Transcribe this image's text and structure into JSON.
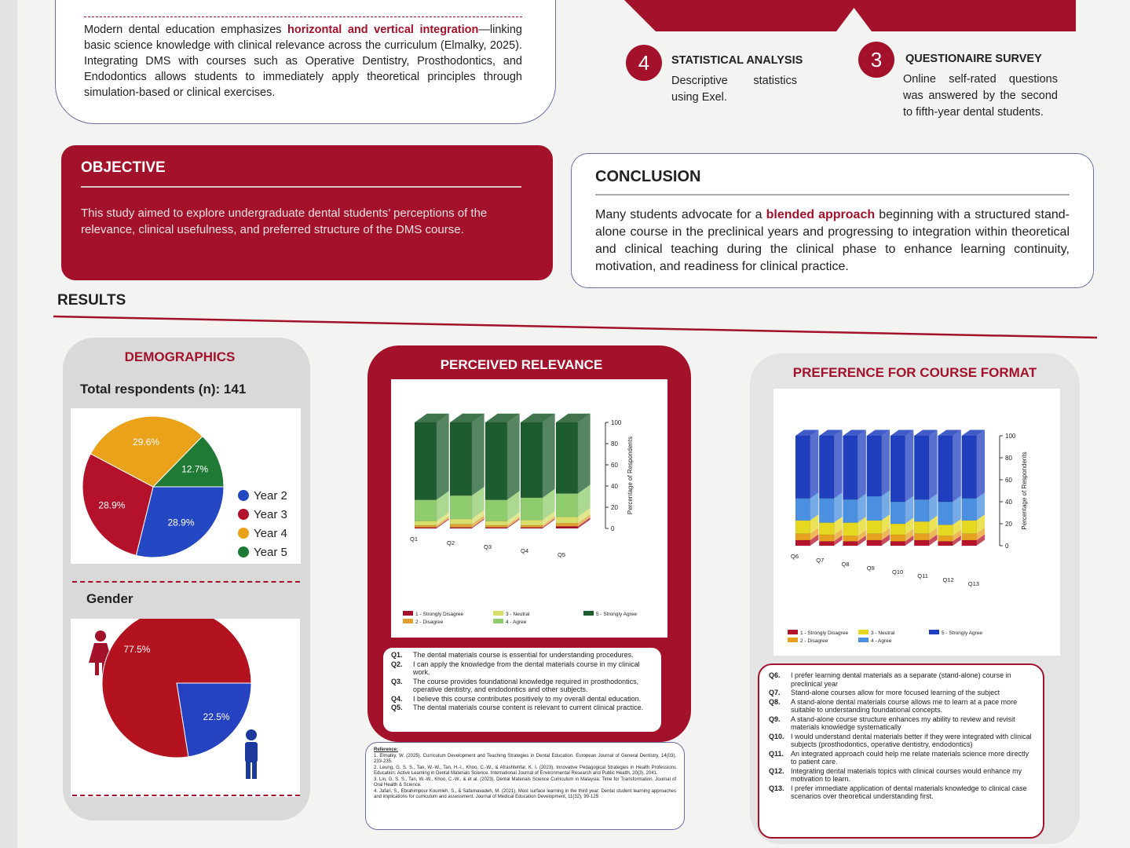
{
  "intro": {
    "before": "Modern dental education emphasizes ",
    "highlight": "horizontal and vertical integration",
    "after": "—linking basic science knowledge with clinical relevance across the curriculum (Elmalky, 2025). Integrating DMS with courses such as Operative Dentistry, Prosthodontics, and Endodontics allows students to immediately apply theoretical principles through simulation-based or clinical exercises."
  },
  "methods": [
    {
      "number": 4,
      "title": "STATISTICAL ANALYSIS",
      "text": "Descriptive statistics using Exel."
    },
    {
      "number": 3,
      "title": "QUESTIONAIRE SURVEY",
      "text": "Online self-rated questions was answered by the second to fifth-year dental students."
    }
  ],
  "objective": {
    "title": "OBJECTIVE",
    "text": "This study aimed to explore undergraduate dental students’ perceptions of the relevance, clinical usefulness, and preferred structure of the DMS course."
  },
  "conclusion": {
    "title": "CONCLUSION",
    "before": "Many students advocate for a ",
    "highlight": "blended approach",
    "after": " beginning with a structured stand-alone course in the preclinical years and progressing to integration within theoretical and clinical teaching during the clinical phase to enhance learning continuity, motivation, and readiness for clinical practice."
  },
  "results": {
    "title": "RESULTS",
    "demographics": {
      "title": "DEMOGRAPHICS",
      "total_label": "Total respondents (n):",
      "total": 141,
      "pie": {
        "type": "pie",
        "categories": [
          "Year 2",
          "Year 3",
          "Year 4",
          "Year 5"
        ],
        "values": [
          28.9,
          28.9,
          29.6,
          12.7
        ],
        "value_labels": [
          "28.9%",
          "28.9%",
          "29.6%",
          "12.7%"
        ],
        "colors": [
          "#2447c4",
          "#b3122a",
          "#e9a21a",
          "#1e7a34"
        ]
      },
      "gender_title": "Gender",
      "gender_pie": {
        "type": "pie",
        "values": [
          22.5,
          77.5
        ],
        "value_labels": [
          "22.5%",
          "77.5%"
        ],
        "colors": [
          "#2542c0",
          "#b3121f"
        ]
      }
    },
    "relevance": {
      "title": "PERCEIVED RELEVANCE",
      "chart": {
        "type": "bar",
        "stacked": true,
        "categories": [
          "Q1",
          "Q2",
          "Q3",
          "Q4",
          "Q5"
        ],
        "ylabel": "Percentage of Respondents",
        "ylim": [
          0,
          100
        ],
        "yticks": [
          0,
          20,
          40,
          60,
          80,
          100
        ],
        "series": [
          {
            "name": "1 - Strongly Disagree",
            "color": "#a3122a",
            "values": [
              1,
              1,
              1,
              1,
              2
            ]
          },
          {
            "name": "2 - Disagree",
            "color": "#e0a030",
            "values": [
              2,
              3,
              2,
              2,
              3
            ]
          },
          {
            "name": "3 - Neutral",
            "color": "#d6df6a",
            "values": [
              4,
              5,
              4,
              5,
              6
            ]
          },
          {
            "name": "4 - Agree",
            "color": "#8fcc6e",
            "values": [
              20,
              22,
              20,
              21,
              22
            ]
          },
          {
            "name": "5 - Strongly Agree",
            "color": "#1d5c2e",
            "values": [
              73,
              69,
              73,
              71,
              67
            ]
          }
        ]
      },
      "questions": [
        {
          "label": "Q1.",
          "text": "The dental materials course is essential for understanding procedures."
        },
        {
          "label": "Q2.",
          "text": "I can apply the knowledge from the dental materials course in my clinical work."
        },
        {
          "label": "Q3.",
          "text": "The course provides foundational knowledge required in prosthodontics, operative dentistry, and endodontics and other subjects."
        },
        {
          "label": "Q4.",
          "text": "I believe this course contributes positively to my overall dental education."
        },
        {
          "label": "Q5.",
          "text": "The dental materials course content is relevant to current clinical practice."
        }
      ]
    },
    "preference": {
      "title": "PREFERENCE FOR COURSE FORMAT",
      "chart": {
        "type": "bar",
        "stacked": true,
        "categories": [
          "Q6",
          "Q7",
          "Q8",
          "Q9",
          "Q10",
          "Q11",
          "Q12",
          "Q13"
        ],
        "ylabel": "Percentage of Respondents",
        "ylim": [
          0,
          100
        ],
        "yticks": [
          0,
          20,
          40,
          60,
          80,
          100
        ],
        "series": [
          {
            "name": "1 - Strongly Disagree",
            "color": "#b5122b",
            "values": [
              5,
              4,
              4,
              5,
              4,
              5,
              4,
              5
            ]
          },
          {
            "name": "2 - Disagree",
            "color": "#e8a020",
            "values": [
              6,
              6,
              5,
              6,
              6,
              6,
              5,
              6
            ]
          },
          {
            "name": "3 - Neutral",
            "color": "#e6d820",
            "values": [
              12,
              11,
              12,
              12,
              10,
              11,
              10,
              12
            ]
          },
          {
            "name": "4 - Agree",
            "color": "#4a8fe0",
            "values": [
              20,
              22,
              21,
              22,
              20,
              20,
              21,
              20
            ]
          },
          {
            "name": "5 - Strongly Agree",
            "color": "#1f3fbf",
            "values": [
              57,
              57,
              58,
              55,
              60,
              58,
              60,
              57
            ]
          }
        ]
      },
      "questions": [
        {
          "label": "Q6.",
          "text": "I prefer learning dental materials as a separate (stand-alone) course in preclinical year"
        },
        {
          "label": "Q7.",
          "text": "Stand-alone courses allow for more focused learning of the subject"
        },
        {
          "label": "Q8.",
          "text": "A stand-alone dental materials course allows me to learn at a pace more suitable to understanding foundational concepts."
        },
        {
          "label": "Q9.",
          "text": "A stand-alone course structure enhances my ability to review and revisit materials knowledge systematically"
        },
        {
          "label": "Q10.",
          "text": "I would understand dental materials better if they were integrated with clinical subjects (prosthodontics, operative dentistry, endodontics)"
        },
        {
          "label": "Q11.",
          "text": "An integrated approach could help me relate materials science more directly to patient care."
        },
        {
          "label": "Q12.",
          "text": "Integrating dental materials topics with clinical courses would enhance my motivation to learn."
        },
        {
          "label": "Q13.",
          "text": "I prefer immediate application of dental materials knowledge to clinical case scenarios over theoretical understanding first."
        }
      ]
    },
    "references": {
      "title": "Reference:",
      "items": [
        "1. Elmalky, W. (2025). Curriculum Development and Teaching Strategies in Dental Education. European Journal of General Dentistry, 14(03), 233-235.",
        "2. Leung, G. S. S., Tan, W.-W., Tan, H.-I., Khoo, C.-W., & Afrashtehfar, K. I. (2023). Innovative Pedagogical Strategies in Health Professions Education: Active Learning in Dental Materials Science. International Journal of Environmental Research and Public Health, 20(3), 2041.",
        "3. Lin, G. S. S., Tan, W.-W., Khoo, C.-W., & et al. (2023). Dental Materials Science Curriculum in Malaysia: Time for Transformation. Journal of Oral Health & Science.",
        "4. Jafari, S., Ebrahimpour Koumleh, S., & Safarnavadeh, M. (2021). Most surface learning in the third year: Dental student learning approaches and implications for curriculum and assessment. Journal of Medical Education Development, 11(32), 99-125"
      ]
    }
  }
}
